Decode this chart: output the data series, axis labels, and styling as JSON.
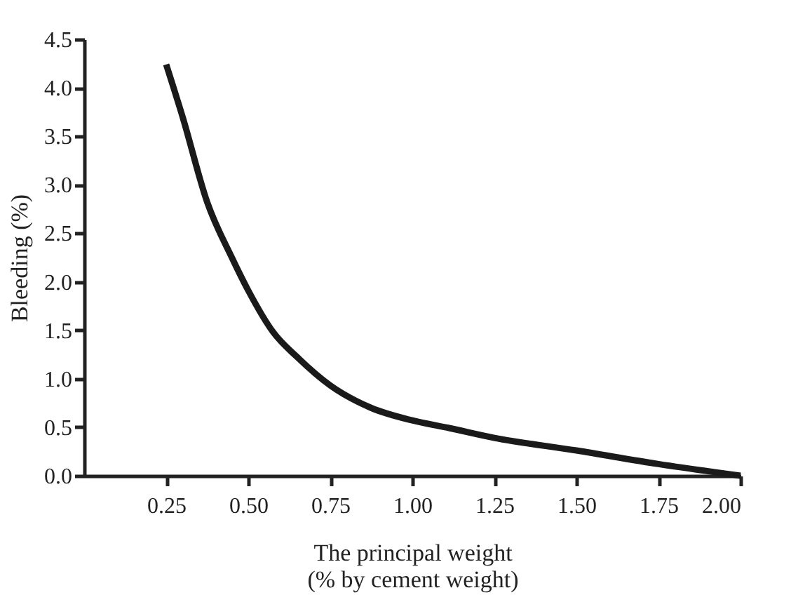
{
  "chart_data": {
    "type": "line",
    "xlabel": "The principal weight\n(% by cement weight)",
    "ylabel": "Bleeding (%)",
    "x": [
      0.25,
      0.3,
      0.375,
      0.45,
      0.5,
      0.576,
      0.65,
      0.75,
      0.874,
      1.0,
      1.114,
      1.25,
      1.5,
      1.75,
      2.0
    ],
    "series": [
      {
        "color": "#1a1a1a",
        "values": [
          4.24,
          3.7,
          2.82,
          2.25,
          1.91,
          1.48,
          1.22,
          0.93,
          0.7,
          0.57,
          0.49,
          0.39,
          0.26,
          0.12,
          0.0
        ]
      }
    ],
    "xlim": [
      0,
      2.0
    ],
    "xticks": [
      {
        "value": 0.25,
        "label": "0.25"
      },
      {
        "value": 0.5,
        "label": "0.50"
      },
      {
        "value": 0.75,
        "label": "0.75"
      },
      {
        "value": 1.0,
        "label": "1.00"
      },
      {
        "value": 1.25,
        "label": "1.25"
      },
      {
        "value": 1.5,
        "label": "1.50"
      },
      {
        "value": 1.75,
        "label": "1.75"
      },
      {
        "value": 2.0,
        "label": "2.00"
      }
    ],
    "ylim": [
      0,
      4.5
    ],
    "yticks": [
      {
        "value": 0,
        "label": "0.0"
      },
      {
        "value": 0.5,
        "label": "0.5"
      },
      {
        "value": 1.0,
        "label": "1.0"
      },
      {
        "value": 1.5,
        "label": "1.5"
      },
      {
        "value": 2.0,
        "label": "2.0"
      },
      {
        "value": 2.5,
        "label": "2.5"
      },
      {
        "value": 3.0,
        "label": "3.0"
      },
      {
        "value": 3.5,
        "label": "3.5"
      },
      {
        "value": 4.0,
        "label": "4.0"
      },
      {
        "value": 4.5,
        "label": "4.5"
      }
    ],
    "grid": false,
    "marker": "none",
    "line_style": "solid"
  }
}
